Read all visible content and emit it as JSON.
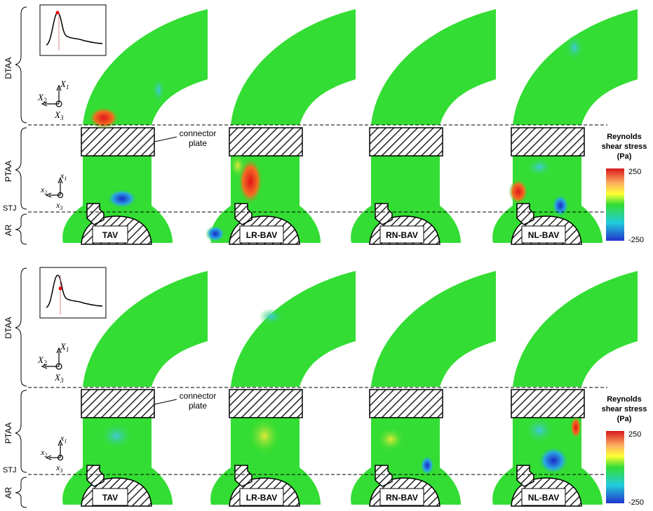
{
  "region_labels": {
    "dtaa": "DTAA",
    "ptaa": "PTAA",
    "stj": "STJ",
    "ar": "AR"
  },
  "valve_labels": [
    "TAV",
    "LR-BAV",
    "RN-BAV",
    "NL-BAV"
  ],
  "connector_label": [
    "connector",
    "plate"
  ],
  "colorbar": {
    "title": [
      "Reynolds",
      "shear stress",
      "(Pa)"
    ],
    "max_label": "250",
    "min_label": "-250",
    "colors": [
      "#d7191c",
      "#fdae61",
      "#ffff33",
      "#33dd33",
      "#22ccdd",
      "#2233cc"
    ]
  },
  "axes_upper": {
    "x1": "X",
    "x1_sub": "1",
    "x2": "X",
    "x2_sub": "2",
    "x3": "X",
    "x3_sub": "3"
  },
  "axes_lower": {
    "x1": "x",
    "x1_sub": "1",
    "x2": "x",
    "x2_sub": "2",
    "x3": "x",
    "x3_sub": "3"
  },
  "field_color": "#33dd33",
  "hatch_color": "#222222"
}
